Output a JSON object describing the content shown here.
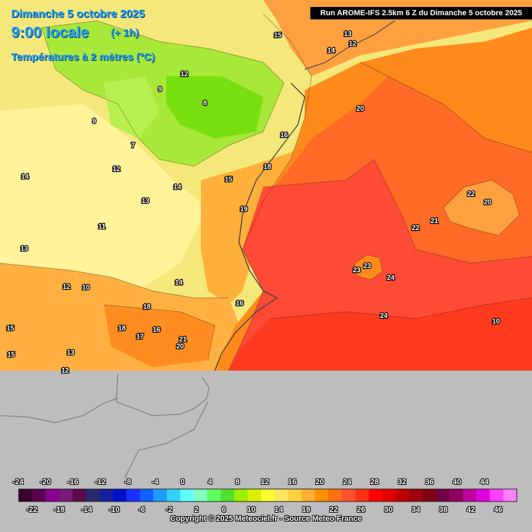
{
  "header": {
    "date": "Dimanche 5 octobre 2025",
    "time": "9:00 locale",
    "offset": "(+ 1h)",
    "parameter": "Températures à 2 mètres (°C)",
    "run_info": "Run AROME-IFS 2.5km 6 Z du Dimanche 5 octobre 2025"
  },
  "map_labels": [
    "15",
    "13",
    "14",
    "12",
    "20",
    "16",
    "18",
    "15",
    "19",
    "21",
    "22",
    "20",
    "22",
    "23",
    "23",
    "24",
    "24",
    "10",
    "9",
    "7",
    "8",
    "12",
    "9",
    "14",
    "13",
    "14",
    "13",
    "12",
    "14",
    "18",
    "16",
    "18",
    "17",
    "21",
    "20",
    "15",
    "15",
    "13",
    "12",
    "12",
    "16",
    "11",
    "10"
  ],
  "legend": {
    "top_labels": [
      "-24",
      "-20",
      "-16",
      "-12",
      "-8",
      "-4",
      "0",
      "4",
      "8",
      "12",
      "16",
      "20",
      "24",
      "28",
      "32",
      "36",
      "40",
      "44"
    ],
    "bottom_labels": [
      "-22",
      "-18",
      "-14",
      "-10",
      "-6",
      "-2",
      "2",
      "6",
      "10",
      "14",
      "18",
      "22",
      "26",
      "30",
      "34",
      "38",
      "42",
      "46"
    ],
    "colors": [
      "#3a0030",
      "#5a0050",
      "#8a0090",
      "#7a1a7a",
      "#5c0a4a",
      "#2a2a6a",
      "#16209a",
      "#0010c8",
      "#1a30ff",
      "#1060ff",
      "#1c9cff",
      "#30d0ff",
      "#60ffff",
      "#80ffc0",
      "#60ff60",
      "#50e030",
      "#9cf000",
      "#d8f000",
      "#ffff30",
      "#ffe860",
      "#ffd040",
      "#ffb030",
      "#ff9000",
      "#ff7010",
      "#ff5030",
      "#ff3010",
      "#ff0000",
      "#e00000",
      "#c00000",
      "#a00010",
      "#800010",
      "#700040",
      "#900060",
      "#c000a0",
      "#e000e0",
      "#ff40ff",
      "#ff80ff"
    ]
  },
  "copyright": "Copyright © 2025 Meteociel.fr - Source Meteo-France"
}
